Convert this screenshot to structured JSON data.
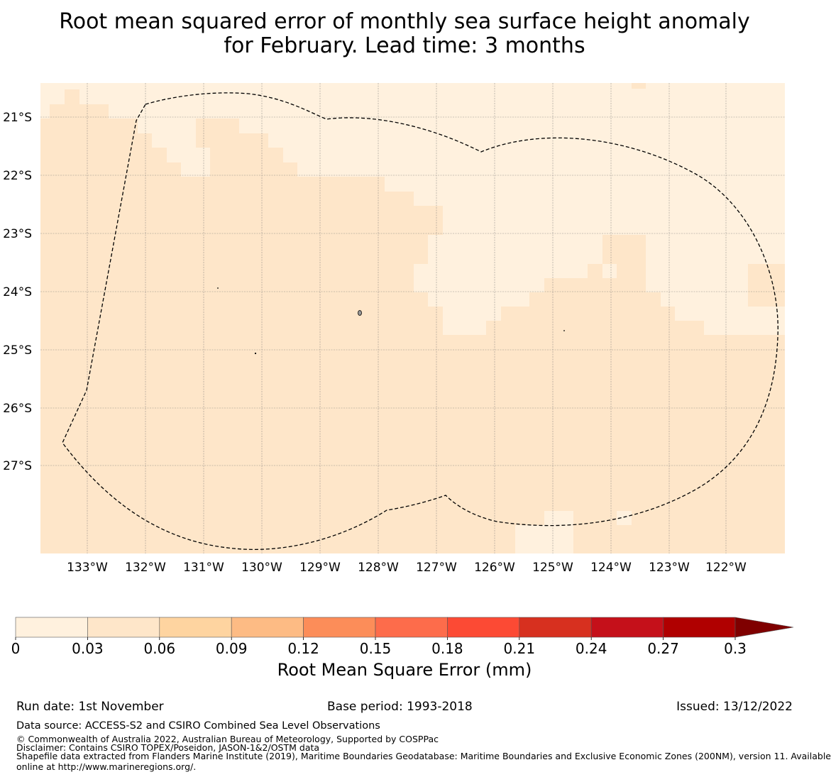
{
  "title": {
    "line1": "Root mean squared error of monthly sea surface height anomaly",
    "line2": "for February. Lead time: 3 months"
  },
  "map": {
    "lat_labels": [
      "21°S",
      "22°S",
      "23°S",
      "24°S",
      "25°S",
      "26°S",
      "27°S"
    ],
    "lon_labels": [
      "133°W",
      "132°W",
      "131°W",
      "130°W",
      "129°W",
      "128°W",
      "127°W",
      "126°W",
      "125°W",
      "124°W",
      "123°W",
      "122°W"
    ],
    "boundary_label": "Maritime boundary (EEZ) outline",
    "colors": {
      "class_0_003": "#fff1de",
      "class_003_006": "#fee6c9"
    }
  },
  "colorbar": {
    "label": "Root Mean Square Error (mm)",
    "ticks": [
      "0",
      "0.03",
      "0.06",
      "0.09",
      "0.12",
      "0.15",
      "0.18",
      "0.21",
      "0.24",
      "0.27",
      "0.3"
    ],
    "colors": [
      "#fff1de",
      "#fee6c9",
      "#fed4a0",
      "#fdbb84",
      "#fc8d59",
      "#fd6c4b",
      "#fc4a34",
      "#d7301f",
      "#c5101a",
      "#b00000",
      "#7f0000"
    ]
  },
  "footer": {
    "run_date": "Run date: 1st November",
    "base_period": "Base period: 1993-2018",
    "issued": "Issued: 13/12/2022",
    "data_source": "Data source: ACCESS-S2 and CSIRO Combined Sea Level Observations",
    "copyright": "© Commonwealth of Australia 2022, Australian Bureau of Meteorology, Supported by COSPPac",
    "disclaimer": "Disclaimer: Contains CSIRO TOPEX/Poseidon, JASON-1&2/OSTM data",
    "shapefile_line1": "Shapefile data extracted from Flanders Marine Institute (2019), Maritime Boundaries Geodatabase: Maritime Boundaries and Exclusive Economic Zones (200NM), version 11. Available",
    "shapefile_line2": "online at http://www.marineregions.org/."
  }
}
